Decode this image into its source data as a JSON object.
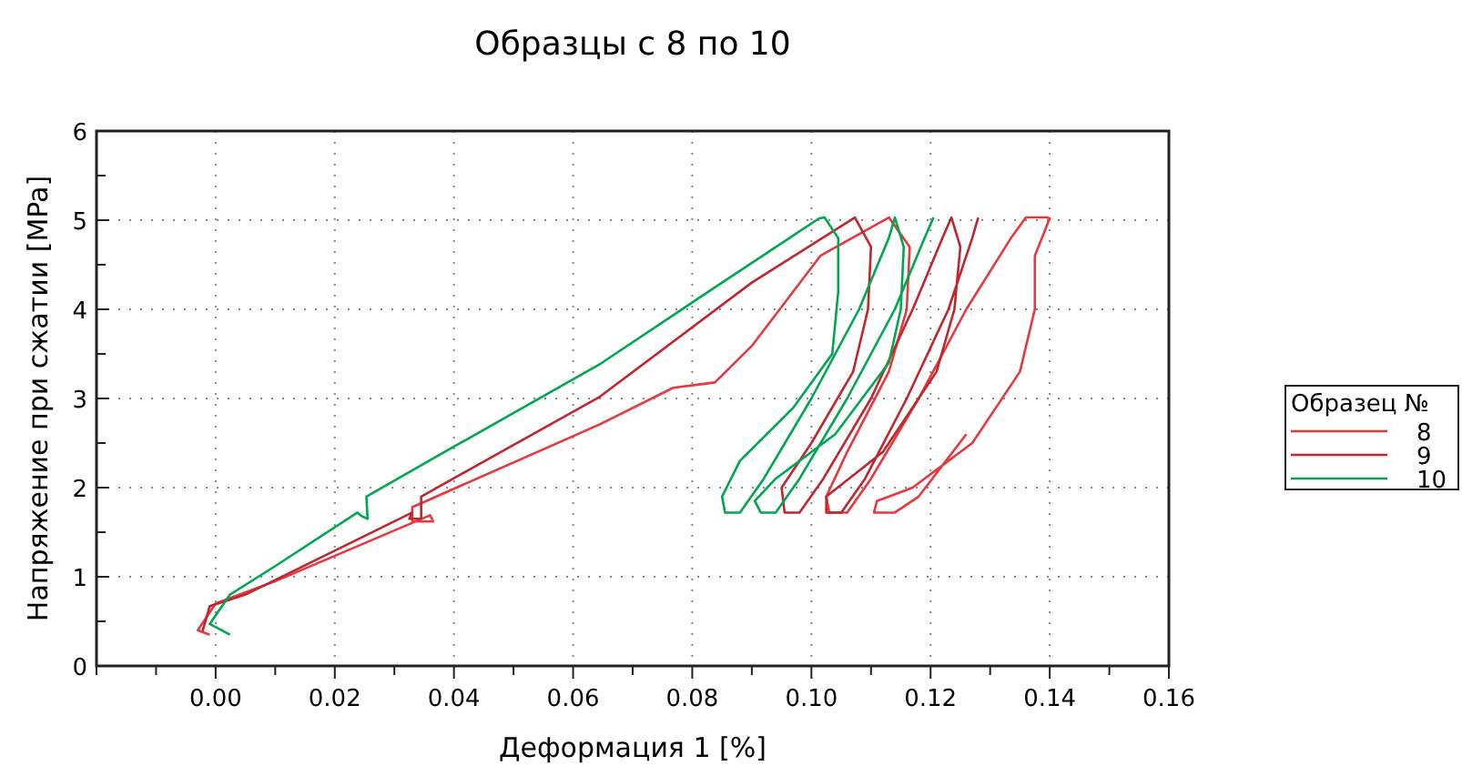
{
  "chart_data": {
    "type": "line",
    "title": "Образцы с 8 по 10",
    "xlabel": "Деформация 1 [%]",
    "ylabel": "Напряжение при сжатии [MPa]",
    "legend_title": "Образец №",
    "legend": "right",
    "grid": true,
    "xlim": [
      -0.02,
      0.16
    ],
    "xticks": [
      {
        "value": -0.02,
        "label": null
      },
      {
        "value": -0.01,
        "label": null
      },
      {
        "value": 0,
        "label": "0.00"
      },
      {
        "value": 0.01,
        "label": null
      },
      {
        "value": 0.02,
        "label": "0.02"
      },
      {
        "value": 0.03,
        "label": null
      },
      {
        "value": 0.04,
        "label": "0.04"
      },
      {
        "value": 0.05,
        "label": null
      },
      {
        "value": 0.06,
        "label": "0.06"
      },
      {
        "value": 0.07,
        "label": null
      },
      {
        "value": 0.08,
        "label": "0.08"
      },
      {
        "value": 0.09,
        "label": null
      },
      {
        "value": 0.1,
        "label": "0.10"
      },
      {
        "value": 0.11,
        "label": null
      },
      {
        "value": 0.12,
        "label": "0.12"
      },
      {
        "value": 0.13,
        "label": null
      },
      {
        "value": 0.14,
        "label": "0.14"
      },
      {
        "value": 0.15,
        "label": null
      },
      {
        "value": 0.16,
        "label": "0.16"
      }
    ],
    "ylim": [
      0,
      6
    ],
    "yticks": [
      0,
      {
        "value": 0.5,
        "label": null
      },
      1,
      {
        "value": 1.5,
        "label": null
      },
      2,
      {
        "value": 2.5,
        "label": null
      },
      3,
      {
        "value": 3.5,
        "label": null
      },
      4,
      {
        "value": 4.5,
        "label": null
      },
      5,
      {
        "value": 5.5,
        "label": null
      },
      6
    ],
    "series": [
      {
        "name": "8",
        "color": "#e8383d",
        "x": [
          -0.001,
          -0.003,
          0.0,
          0.01,
          0.036,
          0.0365,
          0.033,
          0.033,
          0.0645,
          0.0768,
          0.0838,
          0.09,
          0.1015,
          0.113,
          0.1165,
          0.116,
          0.113,
          0.106,
          0.1025,
          0.103,
          0.106,
          0.11,
          0.118,
          0.126,
          0.1335,
          0.136,
          0.1395,
          0.14,
          0.1375,
          0.1375,
          0.135,
          0.127,
          0.117,
          0.111,
          0.1105,
          0.114,
          0.118,
          0.126
        ],
        "values": [
          0.35,
          0.4,
          0.7,
          0.95,
          1.69,
          1.62,
          1.62,
          1.78,
          2.71,
          3.12,
          3.18,
          3.59,
          4.6,
          5.03,
          4.7,
          4.0,
          3.3,
          2.4,
          1.9,
          1.72,
          1.72,
          2.1,
          3.0,
          4.0,
          4.8,
          5.03,
          5.03,
          5.02,
          4.6,
          4.0,
          3.3,
          2.5,
          2.0,
          1.85,
          1.72,
          1.72,
          1.9,
          2.6
        ]
      },
      {
        "name": "9",
        "color": "#c0272d",
        "x": [
          -0.0022,
          -0.001,
          0.005,
          0.033,
          0.0325,
          0.0345,
          0.0345,
          0.0645,
          0.09,
          0.1073,
          0.11,
          0.1095,
          0.107,
          0.1,
          0.095,
          0.0955,
          0.098,
          0.102,
          0.11,
          0.117,
          0.122,
          0.1235,
          0.125,
          0.124,
          0.121,
          0.112,
          0.1025,
          0.1025,
          0.105,
          0.109,
          0.116,
          0.123,
          0.127,
          0.128
        ],
        "values": [
          0.39,
          0.67,
          0.8,
          1.72,
          1.65,
          1.65,
          1.9,
          3.02,
          4.3,
          5.03,
          4.7,
          4.0,
          3.3,
          2.5,
          2.0,
          1.72,
          1.72,
          2.1,
          3.0,
          4.0,
          4.8,
          5.03,
          4.7,
          4.0,
          3.3,
          2.4,
          1.9,
          1.72,
          1.72,
          2.1,
          3.0,
          4.0,
          4.8,
          5.03
        ]
      },
      {
        "name": "10",
        "color": "#00a650",
        "x": [
          0.0024,
          -0.001,
          0.0024,
          0.01,
          0.0238,
          0.0245,
          0.0255,
          0.0253,
          0.04,
          0.0646,
          0.085,
          0.1013,
          0.1022,
          0.1045,
          0.1045,
          0.1035,
          0.097,
          0.088,
          0.085,
          0.0855,
          0.088,
          0.092,
          0.1,
          0.108,
          0.113,
          0.114,
          0.1155,
          0.115,
          0.113,
          0.104,
          0.094,
          0.0905,
          0.0915,
          0.094,
          0.098,
          0.106,
          0.114,
          0.119,
          0.1205
        ],
        "values": [
          0.35,
          0.47,
          0.8,
          1.12,
          1.72,
          1.68,
          1.65,
          1.9,
          2.46,
          3.39,
          4.3,
          5.02,
          5.03,
          4.8,
          4.2,
          3.5,
          2.9,
          2.3,
          1.9,
          1.72,
          1.72,
          2.1,
          3.0,
          4.0,
          4.8,
          5.03,
          4.7,
          4.0,
          3.4,
          2.6,
          2.1,
          1.85,
          1.72,
          1.72,
          2.1,
          3.0,
          4.0,
          4.8,
          5.03
        ]
      }
    ]
  }
}
